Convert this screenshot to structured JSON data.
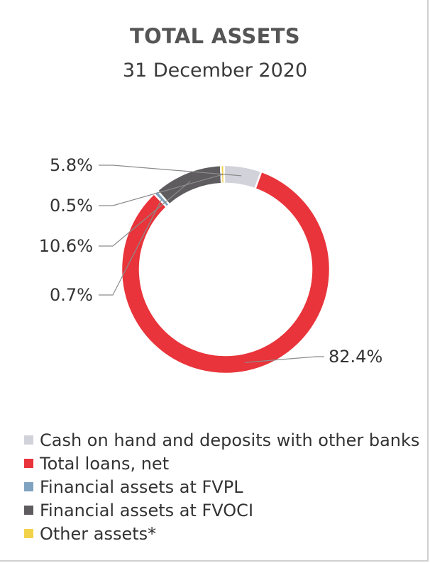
{
  "chart_data": {
    "type": "pie",
    "title": "TOTAL ASSETS",
    "subtitle": "31 December 2020",
    "donut": true,
    "slices": [
      {
        "name": "Total loans, net",
        "value": 82.4,
        "label": "82.4%",
        "color": "#e8343a"
      },
      {
        "name": "Financial assets at FVPL",
        "value": 0.7,
        "label": "0.7%",
        "color": "#7fa3c0"
      },
      {
        "name": "Financial assets at FVOCI",
        "value": 10.6,
        "label": "10.6%",
        "color": "#5e5c5e"
      },
      {
        "name": "Other assets*",
        "value": 0.5,
        "label": "0.5%",
        "color": "#f2d24a"
      },
      {
        "name": "Cash on hand and deposits with other banks",
        "value": 5.8,
        "label": "5.8%",
        "color": "#d2d2da"
      }
    ],
    "legend_order": [
      "Cash on hand and deposits with other banks",
      "Total loans, net",
      "Financial assets at FVPL",
      "Financial assets at FVOCI",
      "Other assets*"
    ],
    "legend_position": "bottom"
  }
}
